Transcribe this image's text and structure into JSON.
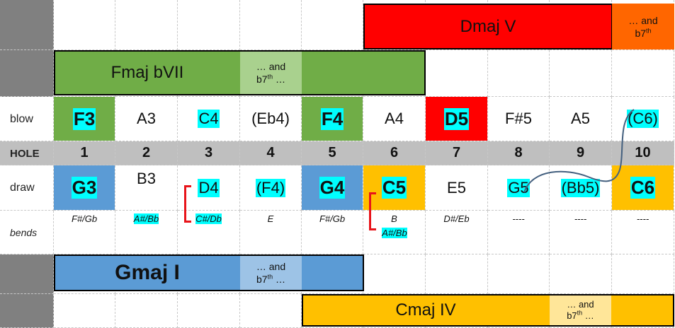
{
  "chords": {
    "dmaj": {
      "label": "Dmaj V",
      "ext": "… and",
      "ext2": "b7",
      "ext_sup": "th"
    },
    "fmaj": {
      "label": "Fmaj bVII",
      "ext": "… and",
      "ext2": "b7",
      "ext_sup": "th",
      "ext3": " …"
    },
    "gmaj": {
      "label": "Gmaj I",
      "ext": "… and",
      "ext2": "b7",
      "ext_sup": "th",
      "ext3": " …"
    },
    "cmaj": {
      "label": "Cmaj IV",
      "ext": "… and",
      "ext2": "b7",
      "ext_sup": "th",
      "ext3": " …"
    }
  },
  "row_labels": {
    "blow": "blow",
    "hole": "HOLE",
    "draw": "draw",
    "bends": "bends"
  },
  "holes": [
    "1",
    "2",
    "3",
    "4",
    "5",
    "6",
    "7",
    "8",
    "9",
    "10"
  ],
  "blow": [
    "F3",
    "A3",
    "C4",
    "(Eb4)",
    "F4",
    "A4",
    "D5",
    "F#5",
    "A5",
    "(C6)"
  ],
  "draw": [
    "G3",
    "B3",
    "D4",
    "(F4)",
    "G4",
    "C5",
    "E5",
    "G5",
    "(Bb5)",
    "C6"
  ],
  "bends": [
    "F#/Gb",
    "A#/Bb",
    "C#/Db",
    "E",
    "F#/Gb",
    "B",
    "D#/Eb",
    "----",
    "----",
    "----"
  ],
  "bend_extra": "A#/Bb",
  "colors": {
    "green": "#70ad47",
    "light_green": "#a9d18e",
    "red": "#ff0000",
    "orange": "#ff6600",
    "blue": "#5b9bd5",
    "light_blue": "#9dc3e6",
    "gold": "#ffc000",
    "light_gold": "#ffe699",
    "grid_gray": "#bfbfbf",
    "label_gray": "#808080",
    "highlight": "#00ffff",
    "bracket": "#e8141a",
    "squiggle": "#44607f"
  }
}
